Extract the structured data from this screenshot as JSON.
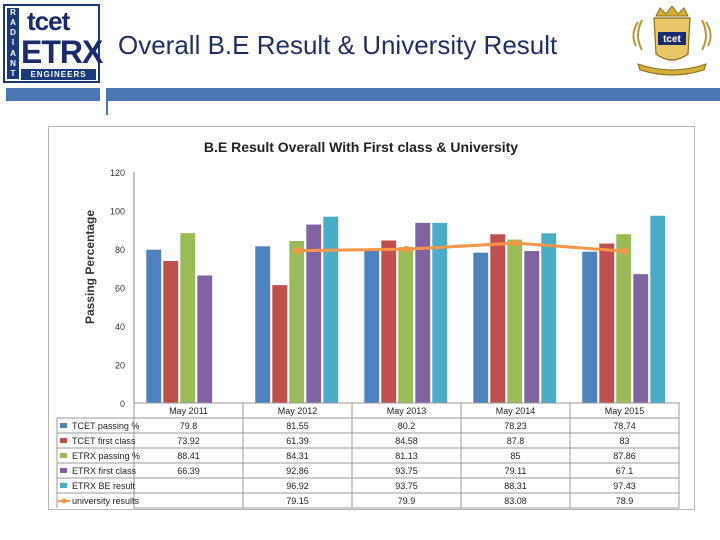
{
  "header": {
    "title": "Overall B.E Result & University Result",
    "logo": {
      "radiant": [
        "R",
        "A",
        "D",
        "I",
        "A",
        "N",
        "T"
      ],
      "tcet": "tcet",
      "etrx": "ETRX",
      "engineers": "ENGINEERS"
    },
    "crest_text": "tcet",
    "colors": {
      "accent": "#4a78b4",
      "title": "#1f2f5f"
    }
  },
  "chart_data": {
    "type": "bar",
    "title": "B.E Result Overall With First class & University",
    "ylabel": "Passing Percentage",
    "xlabel": "",
    "ylim": [
      0,
      120
    ],
    "yticks": [
      0,
      20,
      40,
      60,
      80,
      100,
      120
    ],
    "categories": [
      "May 2011",
      "May 2012",
      "May 2013",
      "May 2014",
      "May 2015"
    ],
    "series": [
      {
        "name": "TCET passing %",
        "kind": "bar",
        "color": "#4f81bd",
        "values": [
          79.8,
          81.55,
          80.2,
          78.23,
          78.74
        ],
        "labels": [
          "79.8",
          "81.55",
          "80.2",
          "78.23",
          "78.74"
        ]
      },
      {
        "name": "TCET first class",
        "kind": "bar",
        "color": "#c0504d",
        "values": [
          73.92,
          61.39,
          84.58,
          87.8,
          83
        ],
        "labels": [
          "73.92",
          "61.39",
          "84.58",
          "87.8",
          "83"
        ]
      },
      {
        "name": "ETRX passing %",
        "kind": "bar",
        "color": "#9bbb59",
        "values": [
          88.41,
          84.31,
          81.13,
          85,
          87.86
        ],
        "labels": [
          "88.41",
          "84.31",
          "81.13",
          "85",
          "87.86"
        ]
      },
      {
        "name": "ETRX first class",
        "kind": "bar",
        "color": "#8064a2",
        "values": [
          66.39,
          92.86,
          93.75,
          79.11,
          67.1
        ],
        "labels": [
          "66.39",
          "92.86",
          "93.75",
          "79.11",
          "67.1"
        ]
      },
      {
        "name": "ETRX BE result",
        "kind": "bar",
        "color": "#4bacc6",
        "values": [
          null,
          96.92,
          93.75,
          88.31,
          97.43
        ],
        "labels": [
          "",
          "96.92",
          "93.75",
          "88.31",
          "97.43"
        ]
      },
      {
        "name": "university results",
        "kind": "line",
        "color": "#f79646",
        "values": [
          null,
          79.15,
          79.9,
          83.08,
          78.9
        ],
        "labels": [
          "",
          "79.15",
          "79.9",
          "83.08",
          "78.9"
        ]
      }
    ]
  }
}
